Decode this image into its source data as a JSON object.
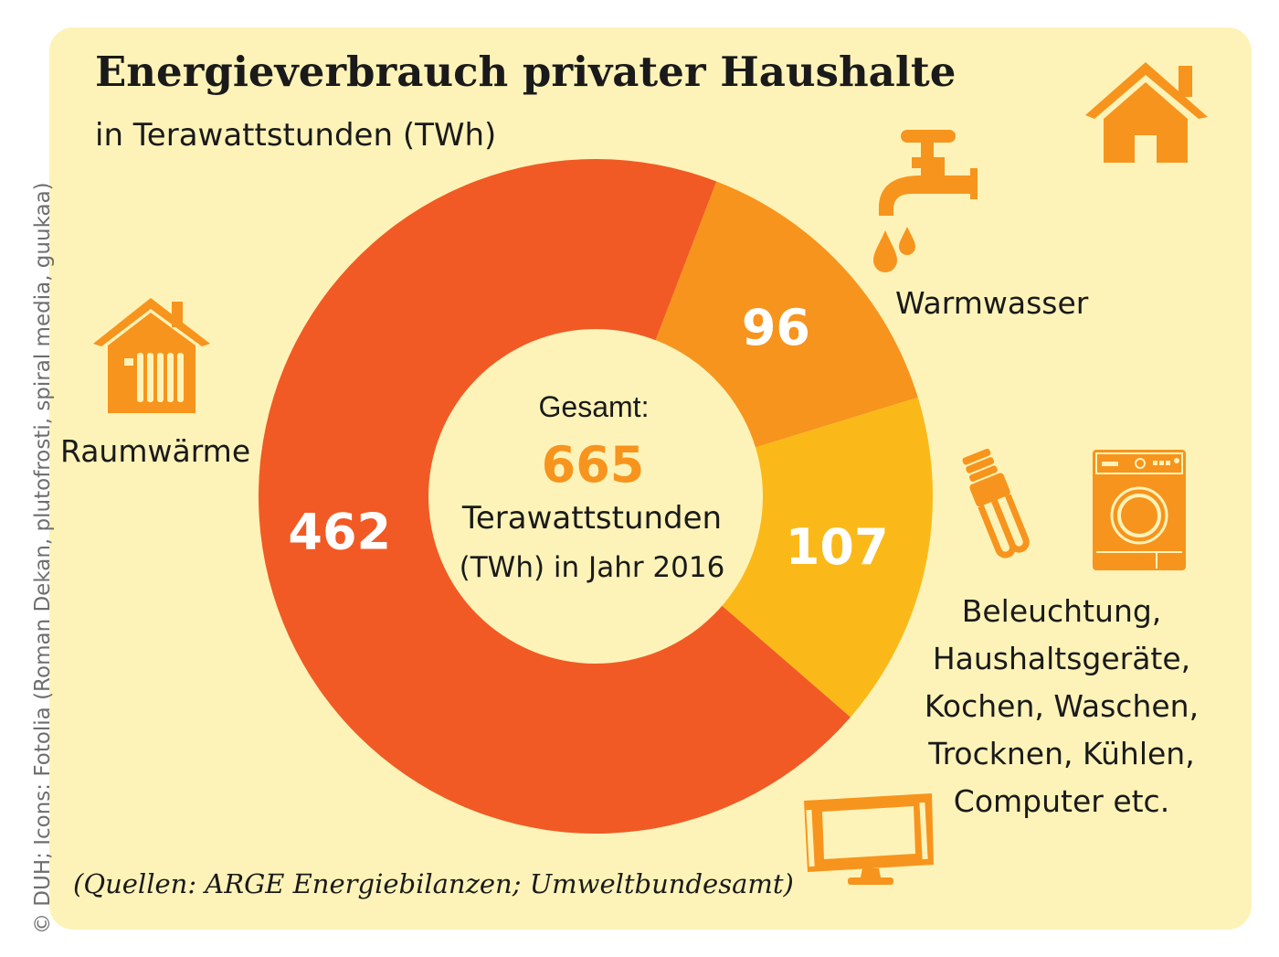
{
  "credit": "© DUH; Icons: Fotolia (Roman Dekan, plutofrosti, spiral media, guukaa)",
  "title": "Energieverbrauch privater Haushalte",
  "subtitle": "in Terawattstunden (TWh)",
  "source": "(Quellen: ARGE Energiebilanzen; Umweltbundesamt)",
  "center": {
    "label": "Gesamt:",
    "total": "665",
    "unit_line1": "Terawattstunden",
    "unit_line2": "(TWh) in Jahr 2016"
  },
  "labels": {
    "raumwaerme": "Raumwärme",
    "warmwasser": "Warmwasser",
    "beleuchtung": "Beleuchtung,\nHaushaltsgeräte,\nKochen, Waschen,\nTrocknen, Kühlen,\nComputer etc."
  },
  "icons": [
    "house-icon",
    "faucet-icon",
    "radiator-house-icon",
    "light-bulb-icon",
    "washing-machine-icon",
    "tv-icon"
  ],
  "colors": {
    "raumwaerme": "#f15a24",
    "warmwasser": "#f7941d",
    "beleuchtung": "#fbb919",
    "accent": "#f7941d",
    "background": "#fdf3b8"
  },
  "chart_data": {
    "type": "pie",
    "donut": true,
    "title": "Energieverbrauch privater Haushalte",
    "subtitle": "in Terawattstunden (TWh)",
    "total": 665,
    "slices": [
      {
        "name": "Warmwasser",
        "value": 96,
        "label": "96"
      },
      {
        "name": "Beleuchtung, Haushaltsgeräte, Kochen, Waschen, Trocknen, Kühlen, Computer etc.",
        "value": 107,
        "label": "107"
      },
      {
        "name": "Raumwärme",
        "value": 462,
        "label": "462"
      }
    ]
  }
}
